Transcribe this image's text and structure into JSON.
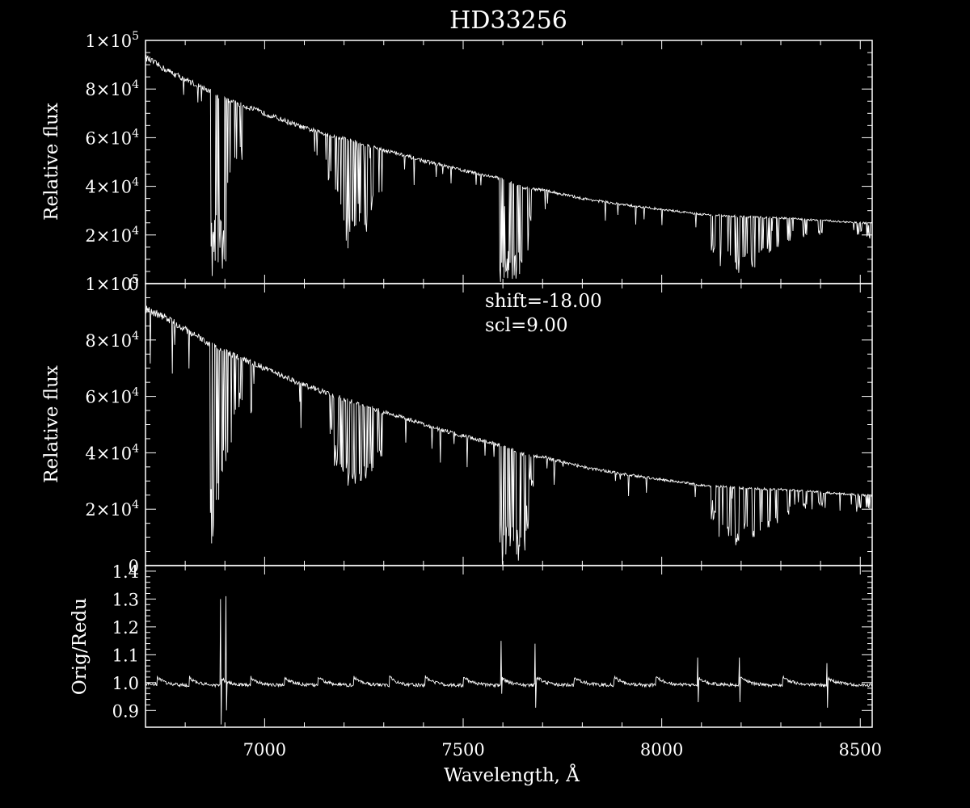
{
  "chart_data": [
    {
      "type": "line",
      "title": "HD33256",
      "ylabel": "Relative flux",
      "xlim": [
        6700,
        8530
      ],
      "ylim": [
        0,
        100000
      ],
      "yticks": [
        {
          "v": 0,
          "mant": "0",
          "exp": ""
        },
        {
          "v": 20000,
          "mant": "2×10",
          "exp": "4"
        },
        {
          "v": 40000,
          "mant": "4×10",
          "exp": "4"
        },
        {
          "v": 60000,
          "mant": "6×10",
          "exp": "4"
        },
        {
          "v": 80000,
          "mant": "8×10",
          "exp": "4"
        },
        {
          "v": 100000,
          "mant": "1×10",
          "exp": "5"
        }
      ],
      "series": [
        {
          "continuum": [
            [
              6700,
              93000
            ],
            [
              6750,
              88000
            ],
            [
              6850,
              80000
            ],
            [
              6900,
              76000
            ],
            [
              7000,
              70000
            ],
            [
              7100,
              64000
            ],
            [
              7200,
              59500
            ],
            [
              7300,
              55000
            ],
            [
              7400,
              50500
            ],
            [
              7500,
              46500
            ],
            [
              7600,
              43000
            ],
            [
              7650,
              39500
            ],
            [
              7700,
              38500
            ],
            [
              7800,
              35000
            ],
            [
              7900,
              32500
            ],
            [
              8000,
              30500
            ],
            [
              8100,
              28500
            ],
            [
              8200,
              27500
            ],
            [
              8300,
              27000
            ],
            [
              8400,
              26000
            ],
            [
              8500,
              25000
            ],
            [
              8530,
              25000
            ]
          ],
          "absorption": [
            {
              "x": 6868,
              "min": 2000
            },
            {
              "x": 6875,
              "min": 3000
            },
            {
              "x": 6882,
              "min": 3500
            },
            {
              "x": 6890,
              "min": 5000
            },
            {
              "x": 6898,
              "min": 8000
            },
            {
              "x": 6912,
              "min": 35000
            },
            {
              "x": 6925,
              "min": 45000
            },
            {
              "x": 6940,
              "min": 50000
            },
            {
              "x": 7165,
              "min": 40000
            },
            {
              "x": 7180,
              "min": 30000
            },
            {
              "x": 7195,
              "min": 20000
            },
            {
              "x": 7210,
              "min": 14000
            },
            {
              "x": 7225,
              "min": 17000
            },
            {
              "x": 7240,
              "min": 22000
            },
            {
              "x": 7255,
              "min": 18000
            },
            {
              "x": 7270,
              "min": 28000
            },
            {
              "x": 7290,
              "min": 35000
            },
            {
              "x": 7598,
              "min": 0
            },
            {
              "x": 7606,
              "min": 0
            },
            {
              "x": 7614,
              "min": 0
            },
            {
              "x": 7622,
              "min": 0
            },
            {
              "x": 7630,
              "min": 0
            },
            {
              "x": 7640,
              "min": 0
            },
            {
              "x": 7650,
              "min": 2000
            },
            {
              "x": 7660,
              "min": 10000
            },
            {
              "x": 7672,
              "min": 25000
            },
            {
              "x": 8130,
              "min": 12000
            },
            {
              "x": 8150,
              "min": 5000
            },
            {
              "x": 8170,
              "min": 8000
            },
            {
              "x": 8190,
              "min": 4000
            },
            {
              "x": 8210,
              "min": 10000
            },
            {
              "x": 8230,
              "min": 6000
            },
            {
              "x": 8250,
              "min": 9000
            },
            {
              "x": 8270,
              "min": 12000
            },
            {
              "x": 8290,
              "min": 14000
            },
            {
              "x": 8320,
              "min": 17000
            },
            {
              "x": 8360,
              "min": 19000
            },
            {
              "x": 8400,
              "min": 20000
            },
            {
              "x": 8498,
              "min": 20000
            },
            {
              "x": 8520,
              "min": 18000
            }
          ]
        }
      ]
    },
    {
      "type": "line",
      "ylabel": "Relative flux",
      "annotations": [
        "shift=-18.00",
        "scl=9.00"
      ],
      "xlim": [
        6700,
        8530
      ],
      "ylim": [
        0,
        100000
      ],
      "yticks": [
        {
          "v": 0,
          "mant": "0",
          "exp": ""
        },
        {
          "v": 20000,
          "mant": "2×10",
          "exp": "4"
        },
        {
          "v": 40000,
          "mant": "4×10",
          "exp": "4"
        },
        {
          "v": 60000,
          "mant": "6×10",
          "exp": "4"
        },
        {
          "v": 80000,
          "mant": "8×10",
          "exp": "4"
        },
        {
          "v": 100000,
          "mant": "1×10",
          "exp": "5"
        }
      ],
      "series": [
        {
          "continuum": [
            [
              6700,
              91000
            ],
            [
              6750,
              88000
            ],
            [
              6850,
              79500
            ],
            [
              6900,
              76000
            ],
            [
              7000,
              70000
            ],
            [
              7100,
              64000
            ],
            [
              7200,
              59000
            ],
            [
              7300,
              54500
            ],
            [
              7400,
              50000
            ],
            [
              7500,
              46000
            ],
            [
              7600,
              42500
            ],
            [
              7650,
              39500
            ],
            [
              7700,
              38500
            ],
            [
              7800,
              35000
            ],
            [
              7900,
              32500
            ],
            [
              8000,
              30500
            ],
            [
              8100,
              28500
            ],
            [
              8200,
              27500
            ],
            [
              8300,
              27000
            ],
            [
              8400,
              26000
            ],
            [
              8500,
              25000
            ],
            [
              8530,
              25000
            ]
          ],
          "absorption": [
            {
              "x": 6868,
              "min": 5000
            },
            {
              "x": 6875,
              "min": 18000
            },
            {
              "x": 6882,
              "min": 20000
            },
            {
              "x": 6890,
              "min": 25000
            },
            {
              "x": 6898,
              "min": 30000
            },
            {
              "x": 6912,
              "min": 40000
            },
            {
              "x": 6925,
              "min": 48000
            },
            {
              "x": 6940,
              "min": 55000
            },
            {
              "x": 7165,
              "min": 45000
            },
            {
              "x": 7180,
              "min": 35000
            },
            {
              "x": 7195,
              "min": 28000
            },
            {
              "x": 7210,
              "min": 25000
            },
            {
              "x": 7225,
              "min": 27000
            },
            {
              "x": 7240,
              "min": 30000
            },
            {
              "x": 7255,
              "min": 28000
            },
            {
              "x": 7270,
              "min": 33000
            },
            {
              "x": 7290,
              "min": 38000
            },
            {
              "x": 7598,
              "min": 0
            },
            {
              "x": 7606,
              "min": 0
            },
            {
              "x": 7614,
              "min": 0
            },
            {
              "x": 7622,
              "min": 0
            },
            {
              "x": 7630,
              "min": 0
            },
            {
              "x": 7640,
              "min": 0
            },
            {
              "x": 7650,
              "min": 3000
            },
            {
              "x": 7660,
              "min": 12000
            },
            {
              "x": 7672,
              "min": 28000
            },
            {
              "x": 8130,
              "min": 15000
            },
            {
              "x": 8150,
              "min": 9000
            },
            {
              "x": 8170,
              "min": 10000
            },
            {
              "x": 8190,
              "min": 7000
            },
            {
              "x": 8210,
              "min": 12000
            },
            {
              "x": 8230,
              "min": 9000
            },
            {
              "x": 8250,
              "min": 11000
            },
            {
              "x": 8270,
              "min": 13000
            },
            {
              "x": 8290,
              "min": 15000
            },
            {
              "x": 8320,
              "min": 18000
            },
            {
              "x": 8360,
              "min": 20000
            },
            {
              "x": 8400,
              "min": 21000
            },
            {
              "x": 8498,
              "min": 20000
            },
            {
              "x": 8520,
              "min": 19000
            }
          ]
        }
      ]
    },
    {
      "type": "line",
      "ylabel": "Orig/Redu",
      "xlabel": "Wavelength, Å",
      "xlim": [
        6700,
        8530
      ],
      "ylim": [
        0.84,
        1.42
      ],
      "xticks": [
        {
          "v": 7000,
          "label": "7000"
        },
        {
          "v": 7500,
          "label": "7500"
        },
        {
          "v": 8000,
          "label": "8000"
        },
        {
          "v": 8500,
          "label": "8500"
        }
      ],
      "yticks": [
        {
          "v": 0.9,
          "label": "0.9"
        },
        {
          "v": 1.0,
          "label": "1.0"
        },
        {
          "v": 1.1,
          "label": "1.1"
        },
        {
          "v": 1.2,
          "label": "1.2"
        },
        {
          "v": 1.3,
          "label": "1.3"
        },
        {
          "v": 1.4,
          "label": "1.4"
        }
      ],
      "series": [
        {
          "baseline": 1.0,
          "scallop_starts": [
            6730,
            6810,
            6888,
            6965,
            7050,
            7135,
            7225,
            7315,
            7405,
            7500,
            7595,
            7685,
            7780,
            7880,
            7985,
            8090,
            8195,
            8305,
            8415
          ],
          "spikes": [
            {
              "x": 6888,
              "high": 1.3,
              "low": 0.85
            },
            {
              "x": 6902,
              "high": 1.31,
              "low": 0.9
            },
            {
              "x": 7595,
              "high": 1.15,
              "low": 0.96
            },
            {
              "x": 7680,
              "high": 1.14,
              "low": 0.91
            },
            {
              "x": 8090,
              "high": 1.09,
              "low": 0.93
            },
            {
              "x": 8195,
              "high": 1.09,
              "low": 0.93
            },
            {
              "x": 8415,
              "high": 1.07,
              "low": 0.91
            }
          ]
        }
      ]
    }
  ]
}
